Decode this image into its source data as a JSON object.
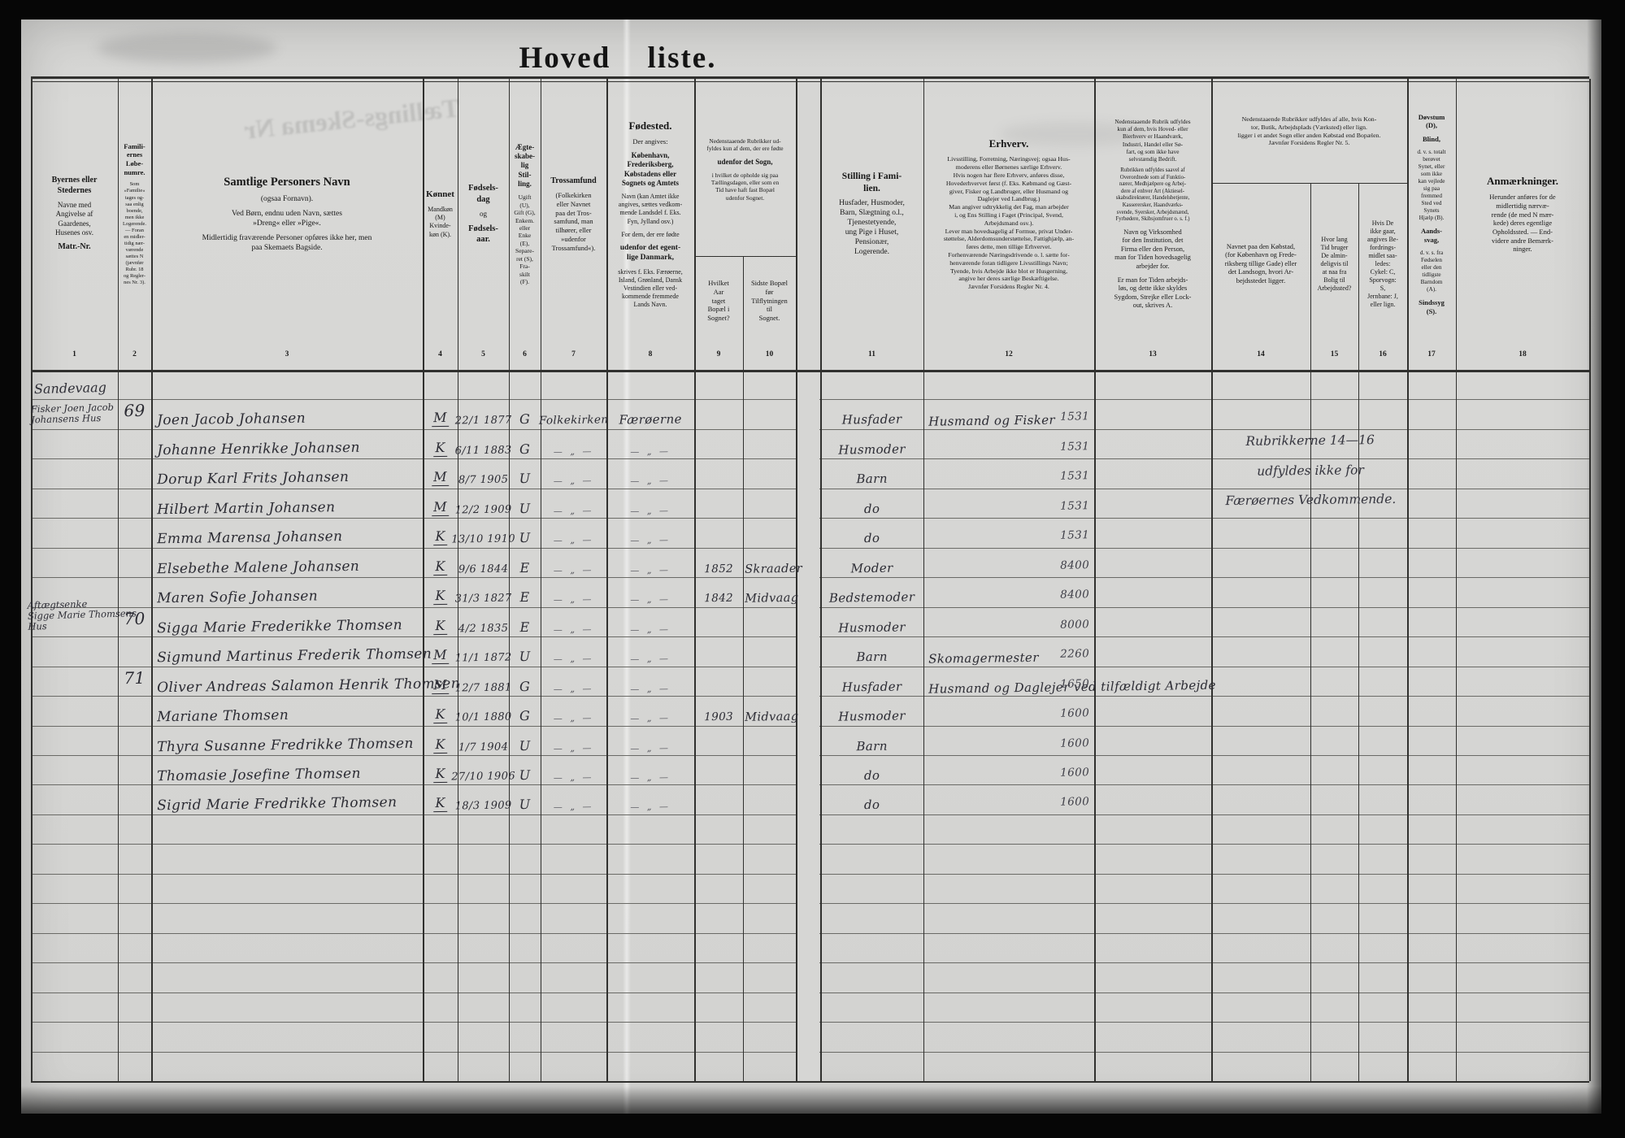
{
  "sheet": {
    "title": "Hoved liste.",
    "ghost_stamp": "Tællings-Skema Nr"
  },
  "header": {
    "column_numbers": [
      "1",
      "2",
      "3",
      "4",
      "5",
      "6",
      "7",
      "8",
      "9",
      "10",
      "11",
      "12",
      "13",
      "14",
      "15",
      "16",
      "17",
      "18"
    ],
    "cells": {
      "c1": [
        {
          "t": "Byernes eller\nStedernes",
          "b": true,
          "s": 10
        },
        {
          "t": "Navne med\nAngivelse af\nGaardenes,\nHusenes osv.",
          "s": 9
        },
        {
          "t": "Matr.-Nr.",
          "b": true,
          "s": 10
        }
      ],
      "c2": [
        {
          "t": "Famili-\nernes\nLøbe-\nnumre.",
          "b": true,
          "s": 8.5
        },
        {
          "t": "Som\n»Familie«\ntages og-\nsaa enlig\nboende,\nmen ikke\nLogerende.\n— Foran\nen midler-\ntidig nær-\nværende\nsættes N\n(jævnfør\nRubr. 18\nog Regler-\nnes Nr. 3).",
          "s": 6.4
        }
      ],
      "c3": [
        {
          "t": "Samtlige Personers Navn",
          "b": true,
          "s": 14.5
        },
        {
          "t": "(ogsaa Fornavn).",
          "s": 9.5
        },
        {
          "t": "Ved Børn, endnu uden Navn, sættes\n»Dreng« eller »Pige«.",
          "s": 9.5
        },
        {
          "t": "Midlertidig fraværende Personer opføres ikke her, men\npaa Skemaets Bagside.",
          "s": 9.5
        }
      ],
      "c4": [
        {
          "t": "Kønnet",
          "b": true,
          "s": 11
        },
        {
          "t": "Mandkøn\n(M)\nKvinde-\nkøn (K).",
          "s": 8
        }
      ],
      "c5": [
        {
          "t": "Fødsels-\ndag",
          "b": true,
          "s": 10.5
        },
        {
          "t": "og",
          "s": 9
        },
        {
          "t": "Fødsels-\naar.",
          "b": true,
          "s": 10.5
        }
      ],
      "c6": [
        {
          "t": "Ægte-\nskabe-\nlig\nStil-\nling.",
          "b": true,
          "s": 9
        },
        {
          "t": "Ugift\n(U),\nGift (G),\nEnkem.\neller\nEnke\n(E),\nSepare-\nret (S),\nFra-\nskilt\n(F).",
          "s": 7.5
        }
      ],
      "c7": [
        {
          "t": "Trossamfund",
          "b": true,
          "s": 10
        },
        {
          "t": "(Folkekirken\neller Navnet\npaa det Tros-\nsamfund, man\ntilhører, eller\n»udenfor\nTrossamfund«).",
          "s": 8.5
        }
      ],
      "c8": [
        {
          "t": "Fødested.",
          "b": true,
          "s": 13
        },
        {
          "t": "Der angives:",
          "s": 8.5
        },
        {
          "t": "København,\nFrederiksberg,\nKøbstadens eller\nSognets og Amtets",
          "b": true,
          "s": 9
        },
        {
          "t": "Navn (kan Amtet ikke\nangives, sættes vedkom-\nmende Landsdel f. Eks.\nFyn, Jylland osv.)",
          "s": 8
        },
        {
          "t": "For dem, der ere fødte",
          "s": 8
        },
        {
          "t": "udenfor det egent-\nlige Danmark,",
          "b": true,
          "s": 9.5
        },
        {
          "t": "skrives f. Eks. Færøerne,\nIsland, Grønland, Dansk\nVestindien eller ved-\nkommende fremmede\nLands Navn.",
          "s": 8
        }
      ],
      "g910": [
        {
          "t": "Nedenstaaende Rubrikker ud-\nfyldes kun af dem, der ere fødte",
          "s": 7.4
        },
        {
          "t": "udenfor det Sogn,",
          "b": true,
          "s": 9
        },
        {
          "t": "i hvilket de opholde sig paa\nTællingsdagen, eller som en\nTid have haft fast Bopæl\nudenfor Sognet.",
          "s": 7.4
        }
      ],
      "c9": [
        {
          "t": "Hvilket\nAar\ntaget\nBopæl i\nSognet?",
          "s": 8.5
        }
      ],
      "c10": [
        {
          "t": "Sidste Bopæl\nfør\nTilflytningen\ntil\nSognet.",
          "s": 8.5
        }
      ],
      "c11": [
        {
          "t": "Stilling i Fami-\nlien.",
          "b": true,
          "s": 11.5
        },
        {
          "t": "Husfader, Husmoder,\nBarn, Slægtning o.l.,\nTjenestetyende,\nung Pige i Huset,\nPensionær,\nLogerende.",
          "s": 9.5
        }
      ],
      "c12": [
        {
          "t": "Erhverv.",
          "b": true,
          "s": 13
        },
        {
          "t": "Livsstilling, Forretning, Næringsvej; ogsaa Hus-\nmoderens eller Børnenes særlige Erhverv.\nHvis nogen har flere Erhverv, anføres disse,\nHovederhvervet først (f. Eks. Købmand og Gæst-\ngiver, Fisker og Landbruger, eller Husmand og\nDaglejer ved Landbrug.)\nMan angiver udtrykkelig det Fag, man arbejder\ni, og Ens Stilling i Faget (Principal, Svend,\nArbejdsmand osv.).\nLever man hovedsagelig af Formue, privat Under-\nstøttelse, Alderdomsunderstøttelse, Fattighjælp, an-\nføres dette, men tillige Erhvervet.\nForhenværende Næringsdrivende o. l. sætte for-\nhenværende foran tidligere Livsstillings Navn;\nTyende, hvis Arbejde ikke blot er Husgerning,\nangive her deres særlige Beskæftigelse.\nJævnfør Forsidens Regler Nr. 4.",
          "s": 7.8
        }
      ],
      "c13": [
        {
          "t": "Nedenstaaende Rubrik udfyldes\nkun af dem, hvis Hoved- eller\nBierhverv er Haandværk,\nIndustri, Handel eller Sø-\nfart, og som ikke have\nselvstændig Bedrift.",
          "s": 7.3
        },
        {
          "t": "Rubrikken udfyldes saavel af\nOverordnede som af Funktio-\nnærer, Medhjælpere og Arbej-\ndere af enhver Art (Aktiesel-\nskabsdirektører, Handelsbetjente,\nKasserersker, Haandværks-\nsvende, Syersker, Arbejdsmænd,\nFyrbødere, Skibsjomfruer o. s. f.)",
          "s": 6.8
        },
        {
          "t": "Navn og Virksomhed\nfor den Institution, det\nFirma eller den Person,\nman for Tiden hovedsagelig\narbejder for.",
          "s": 8.4
        },
        {
          "t": "Er man for Tiden arbejds-\nløs, og dette ikke skyldes\nSygdom, Strejke eller Lock-\nout, skrives A.",
          "s": 8.4
        }
      ],
      "g1416": [
        {
          "t": "Nedenstaaende Rubrikker udfyldes af alle, hvis Kon-\ntor, Butik, Arbejdsplads (Værksted) eller lign.\nligger i et andet Sogn eller anden Købstad end Bopælen.\nJævnfør Forsidens Regler Nr. 5.",
          "s": 7.8
        }
      ],
      "c14": [
        {
          "t": "Navnet paa den Købstad,\n(for København og Frede-\nriksberg tillige Gade) eller\ndet Landsogn, hvori Ar-\nbejdsstedet ligger.",
          "s": 8.4
        }
      ],
      "c15": [
        {
          "t": "Hvor lang\nTid bruger\nDe almin-\ndeligvis til\nat naa fra\nBolig til\nArbejdssted?",
          "s": 8
        }
      ],
      "c16": [
        {
          "t": "Hvis De\nikke gaar,\nangives Be-\nfordrings-\nmidlet saa-\nledes:\nCykel: C,\nSporvogn:\nS,\nJernbane: J,\neller lign.",
          "s": 8
        }
      ],
      "c17": [
        {
          "t": "Døvstum\n(D),",
          "b": true,
          "s": 8.5
        },
        {
          "t": "Blind,",
          "b": true,
          "s": 8.5
        },
        {
          "t": "d. v. s. totalt\nberøvet\nSynet, eller\nsom ikke\nkan vejlede\nsig paa\nfremmed\nSted ved\nSynets\nHjælp (B).",
          "s": 7.2
        },
        {
          "t": "Aands-\nsvag,",
          "b": true,
          "s": 8.5
        },
        {
          "t": "d. v. s. fra\nFødselen\neller den\ntidligste\nBarndom\n(A).",
          "s": 7.2
        },
        {
          "t": "Sindssyg\n(S).",
          "b": true,
          "s": 8.5
        }
      ],
      "c18": [
        {
          "t": "Anmærkninger.",
          "b": true,
          "s": 13
        },
        {
          "t": "Herunder anføres for de\nmidlertidig nærvæ-\nrende (de med N mær-\nkede) deres egentlige\nOpholdssted. — End-\nvidere andre Bemærk-\nninger.",
          "s": 8.5
        }
      ]
    }
  },
  "marks": {
    "ditto": "— „ —"
  },
  "margin_notes": {
    "place": "Sandevaag",
    "house_69": "Fisker Joen Jacob\nJohansens Hus",
    "house_70": "Aftægtsenke\nSigge Marie Thomsens\nHus"
  },
  "remark_lines": [
    "Rubrikkerne 14—16",
    "udfyldes ikke for",
    "Færøernes Vedkommende."
  ],
  "rows": [
    {},
    {
      "no": "69",
      "name": "Joen Jacob Johansen",
      "sex": "M",
      "born": "22/1 1877",
      "status": "G",
      "faith": "Folkekirken",
      "birthplace": "Færøerne",
      "family": "Husfader",
      "occupation": "Husmand og Fisker",
      "amount": "1531"
    },
    {
      "name": "Johanne Henrikke Johansen",
      "sex": "K",
      "born": "6/11 1883",
      "status": "G",
      "ditto": true,
      "family": "Husmoder",
      "amount": "1531"
    },
    {
      "name": "Dorup Karl Frits Johansen",
      "sex": "M",
      "born": "8/7 1905",
      "status": "U",
      "ditto": true,
      "family": "Barn",
      "amount": "1531"
    },
    {
      "name": "Hilbert Martin Johansen",
      "sex": "M",
      "born": "12/2 1909",
      "status": "U",
      "ditto": true,
      "family": "do",
      "amount": "1531"
    },
    {
      "name": "Emma Marensa Johansen",
      "sex": "K",
      "born": "13/10 1910",
      "status": "U",
      "ditto": true,
      "family": "do",
      "amount": "1531"
    },
    {
      "name": "Elsebethe Malene Johansen",
      "sex": "K",
      "born": "9/6 1844",
      "status": "E",
      "ditto": true,
      "year": "1852",
      "lastres": "Skraader",
      "family": "Moder",
      "amount": "8400"
    },
    {
      "name": "Maren Sofie Johansen",
      "sex": "K",
      "born": "31/3 1827",
      "status": "E",
      "ditto": true,
      "year": "1842",
      "lastres": "Midvaag",
      "family": "Bedstemoder",
      "amount": "8400"
    },
    {
      "no": "70",
      "name": "Sigga Marie Frederikke Thomsen",
      "sex": "K",
      "born": "4/2 1835",
      "status": "E",
      "ditto": true,
      "family": "Husmoder",
      "amount": "8000"
    },
    {
      "name": "Sigmund Martinus Frederik Thomsen",
      "sex": "M",
      "born": "11/1 1872",
      "status": "U",
      "ditto": true,
      "family": "Barn",
      "occupation": "Skomagermester",
      "amount": "2260"
    },
    {
      "no": "71",
      "name": "Oliver Andreas Salamon Henrik Thomsen",
      "sex": "M",
      "born": "12/7 1881",
      "status": "G",
      "ditto": true,
      "family": "Husfader",
      "occupation": "Husmand og Daglejer ved tilfældigt Arbejde",
      "amount": "1650"
    },
    {
      "name": "Mariane Thomsen",
      "sex": "K",
      "born": "10/1 1880",
      "status": "G",
      "ditto": true,
      "year": "1903",
      "lastres": "Midvaag",
      "family": "Husmoder",
      "amount": "1600"
    },
    {
      "name": "Thyra Susanne Fredrikke Thomsen",
      "sex": "K",
      "born": "1/7 1904",
      "status": "U",
      "ditto": true,
      "family": "Barn",
      "amount": "1600"
    },
    {
      "name": "Thomasie Josefine Thomsen",
      "sex": "K",
      "born": "27/10 1906",
      "status": "U",
      "ditto": true,
      "family": "do",
      "amount": "1600"
    },
    {
      "name": "Sigrid Marie Fredrikke Thomsen",
      "sex": "K",
      "born": "18/3 1909",
      "status": "U",
      "ditto": true,
      "family": "do",
      "amount": "1600"
    },
    {},
    {},
    {},
    {},
    {},
    {},
    {},
    {},
    {}
  ]
}
